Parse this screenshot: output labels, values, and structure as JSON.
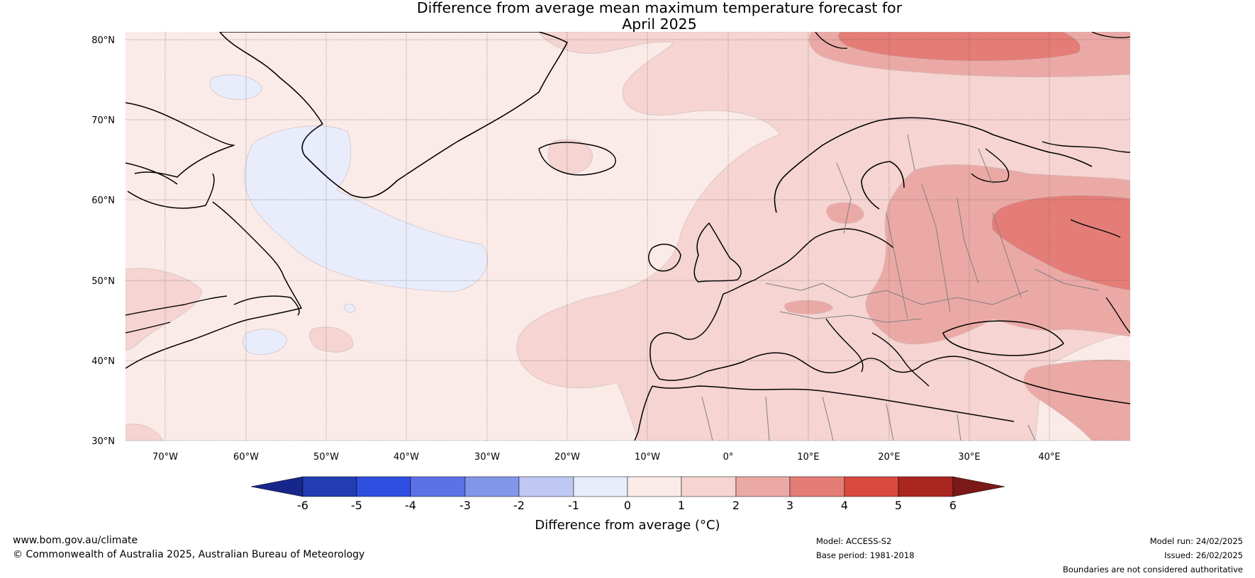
{
  "title_line1": "Difference from average mean maximum temperature forecast for",
  "title_line2": "April 2025",
  "lat_labels": [
    "80°N",
    "70°N",
    "60°N",
    "50°N",
    "40°N",
    "30°N"
  ],
  "lon_labels": [
    "70°W",
    "60°W",
    "50°W",
    "40°W",
    "30°W",
    "20°W",
    "10°W",
    "0°",
    "10°E",
    "20°E",
    "30°E",
    "40°E"
  ],
  "map_extent": {
    "lon_min": -75,
    "lon_max": 50,
    "lat_min": 30,
    "lat_max": 81
  },
  "colorbar": {
    "label": "Difference from average (°C)",
    "ticks": [
      "-6",
      "-5",
      "-4",
      "-3",
      "-2",
      "-1",
      "0",
      "1",
      "2",
      "3",
      "4",
      "5",
      "6"
    ],
    "colors": [
      "#17268b",
      "#243cb2",
      "#2f4fe0",
      "#5a72e6",
      "#8296e9",
      "#bec8f3",
      "#e8ecfb",
      "#fbebe8",
      "#f5d4d1",
      "#eba9a6",
      "#e47d77",
      "#da4a3e",
      "#a9271f",
      "#7b1918"
    ]
  },
  "footer": {
    "website": "www.bom.gov.au/climate",
    "copyright": "© Commonwealth of Australia 2025, Australian Bureau of Meteorology",
    "model": "Model: ACCESS-S2",
    "base_period": "Base period: 1981-2018",
    "model_run": "Model run: 24/02/2025",
    "issued": "Issued: 26/02/2025",
    "disclaimer": "Boundaries are not considered authoritative"
  }
}
